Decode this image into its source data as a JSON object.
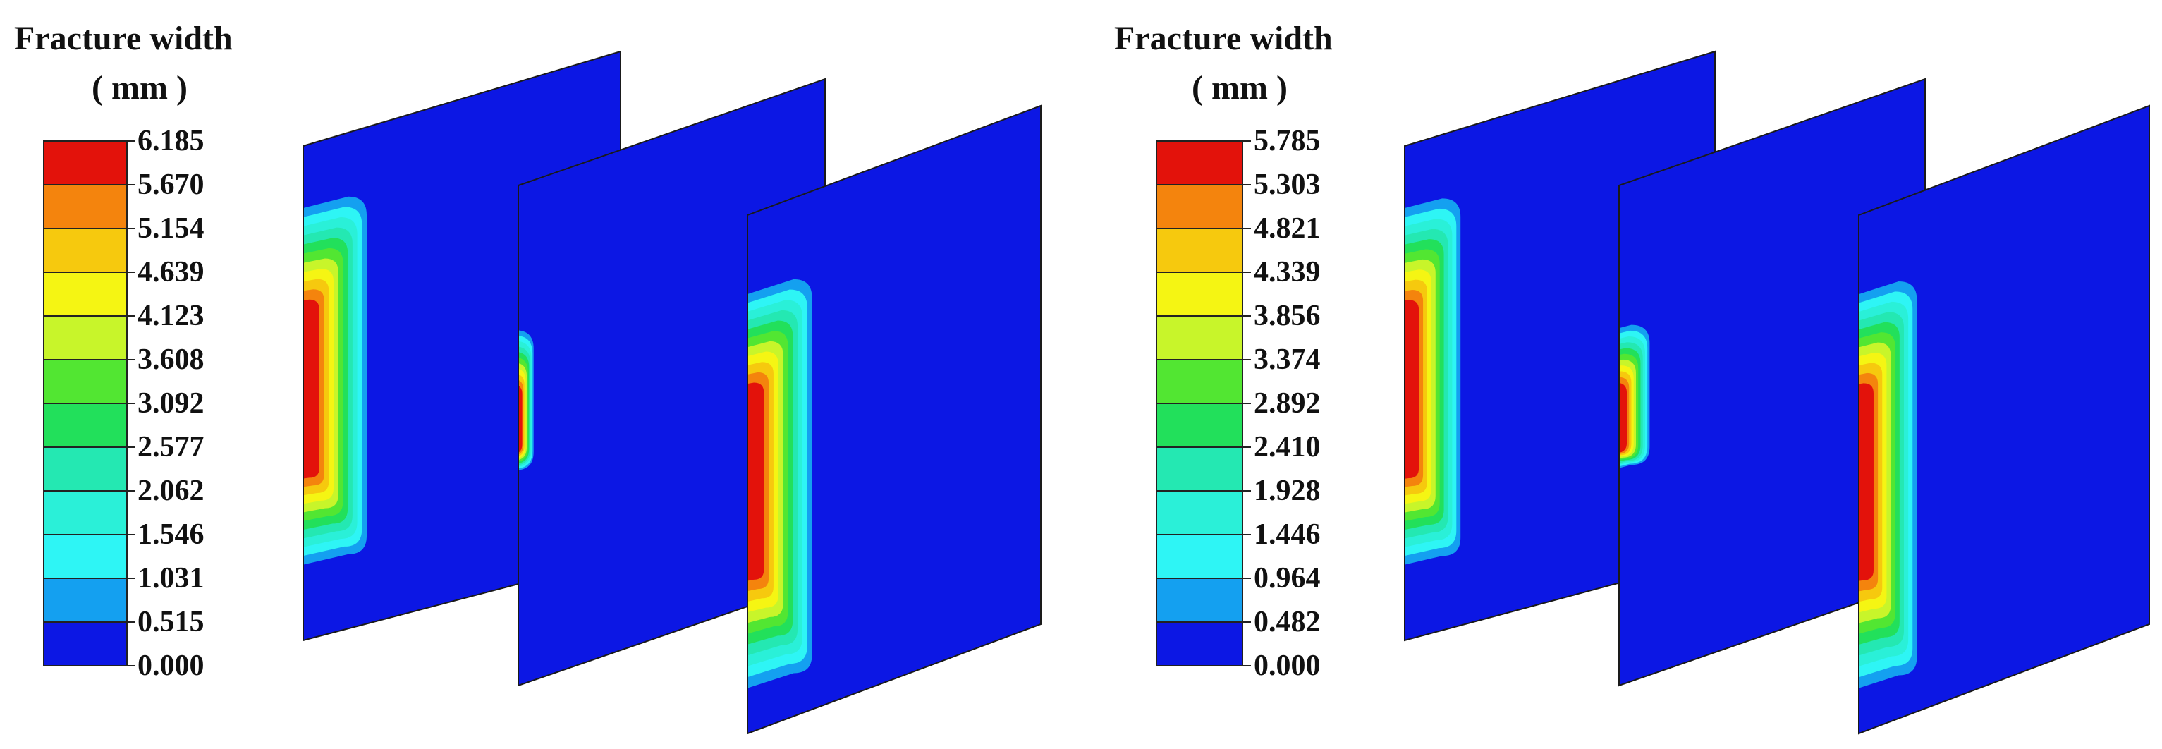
{
  "panels": [
    {
      "legend_title": "Fracture width",
      "legend_unit": "( mm )",
      "ticks": [
        "6.185",
        "5.670",
        "5.154",
        "4.639",
        "4.123",
        "3.608",
        "3.092",
        "2.577",
        "2.062",
        "1.546",
        "1.031",
        "0.515",
        "0.000"
      ],
      "fracture_zone_depth": [
        0.2,
        0.05,
        0.22
      ]
    },
    {
      "legend_title": "Fracture width",
      "legend_unit": "( mm )",
      "ticks": [
        "5.785",
        "5.303",
        "4.821",
        "4.339",
        "3.856",
        "3.374",
        "2.892",
        "2.410",
        "1.928",
        "1.446",
        "0.964",
        "0.482",
        "0.000"
      ],
      "fracture_zone_depth": [
        0.18,
        0.1,
        0.2
      ]
    }
  ],
  "colors": {
    "levels": [
      "#e3120b",
      "#f4840d",
      "#f6c90e",
      "#f5f513",
      "#c8f52a",
      "#52e632",
      "#22e05b",
      "#24e8b2",
      "#2af0d8",
      "#2ef5f5",
      "#14a0f0",
      "#0c17e4"
    ],
    "background_plane": "#0c17e4"
  }
}
